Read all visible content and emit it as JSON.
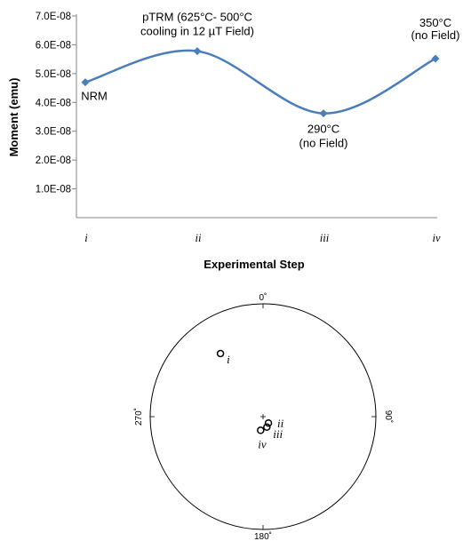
{
  "chart_data": [
    {
      "type": "line",
      "xlabel": "Experimental Step",
      "ylabel": "Moment (emu)",
      "categories": [
        "i",
        "ii",
        "iii",
        "iv"
      ],
      "ylim": [
        0,
        7e-08
      ],
      "yticks": [
        "7.0E-08",
        "6.0E-08",
        "5.0E-08",
        "4.0E-08",
        "3.0E-08",
        "2.0E-08",
        "1.0E-08"
      ],
      "series": [
        {
          "values": [
            4.7e-08,
            5.78e-08,
            3.62e-08,
            5.52e-08
          ]
        }
      ],
      "color": "#4a7ebb",
      "grid": false,
      "annotations": [
        {
          "point": 0,
          "lines": [
            "NRM"
          ]
        },
        {
          "point": 1,
          "lines": [
            "pTRM (625°C- 500°C",
            "cooling in 12 µT Field)"
          ]
        },
        {
          "point": 2,
          "lines": [
            "290°C",
            "(no Field)"
          ]
        },
        {
          "point": 3,
          "lines": [
            "350°C",
            "(no Field)"
          ]
        }
      ]
    },
    {
      "type": "scatter",
      "projection": "equal-area stereonet",
      "direction_labels": [
        "0˚",
        "90˚",
        "180˚",
        "270˚"
      ],
      "points": [
        {
          "label": "i",
          "declaration_deg": 326,
          "inclination_deg": 33
        },
        {
          "label": "ii",
          "declaration_deg": 140,
          "inclination_deg": 84
        },
        {
          "label": "iii",
          "declaration_deg": 160,
          "inclination_deg": 82
        },
        {
          "label": "iv",
          "declaration_deg": 190,
          "inclination_deg": 80
        }
      ]
    }
  ]
}
